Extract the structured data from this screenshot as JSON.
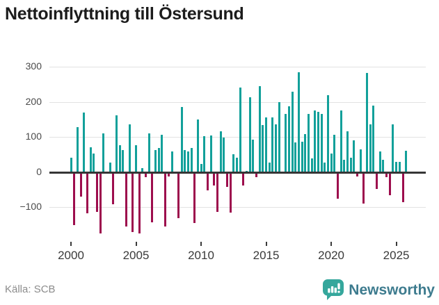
{
  "header": {
    "title": "Nettoinflyttning till Östersund"
  },
  "footer": {
    "source": "Källa: SCB",
    "brand": "Newsworthy",
    "logo_icon": "bar-chart-speech-bubble"
  },
  "colors": {
    "positive_bar": "#12a09a",
    "negative_bar": "#9d0d4d",
    "grid": "#e2e2e2",
    "zero_axis": "#363636",
    "title_text": "#1c1c1c",
    "tick_text": "#4a4a4a",
    "brand_bubble": "#35a79c",
    "brand_text": "#3d7b8e"
  },
  "chart_data": {
    "type": "bar",
    "title": "Nettoinflyttning till Östersund",
    "frequency": "quarterly",
    "period_start": "2000 Q1",
    "period_end": "2025 Q4",
    "values": [
      40,
      -152,
      129,
      -70,
      170,
      -118,
      70,
      52,
      -114,
      -175,
      110,
      2,
      27,
      -93,
      162,
      77,
      63,
      -155,
      136,
      -172,
      77,
      -175,
      12,
      -14,
      110,
      -144,
      62,
      68,
      107,
      -155,
      -13,
      58,
      2,
      -132,
      186,
      62,
      58,
      68,
      -145,
      149,
      23,
      103,
      -53,
      105,
      -39,
      -114,
      116,
      99,
      -42,
      -116,
      51,
      41,
      242,
      -39,
      3,
      214,
      92,
      -15,
      245,
      134,
      155,
      26,
      155,
      136,
      199,
      -5,
      166,
      187,
      230,
      84,
      285,
      86,
      108,
      166,
      38,
      175,
      172,
      166,
      27,
      219,
      53,
      106,
      -77,
      175,
      34,
      116,
      41,
      91,
      -12,
      64,
      -90,
      283,
      136,
      190,
      -49,
      58,
      35,
      -15,
      -66,
      137,
      29,
      29,
      -87,
      60
    ],
    "x_tick_labels": [
      "2000",
      "2005",
      "2010",
      "2015",
      "2020",
      "2025"
    ],
    "y_tick_labels": [
      "300",
      "200",
      "100",
      "0",
      "−100"
    ],
    "y_ticks": [
      300,
      200,
      100,
      0,
      -100
    ],
    "ylim": [
      -210,
      325
    ],
    "grid": true,
    "legend": false,
    "xlabel": "",
    "ylabel": ""
  }
}
